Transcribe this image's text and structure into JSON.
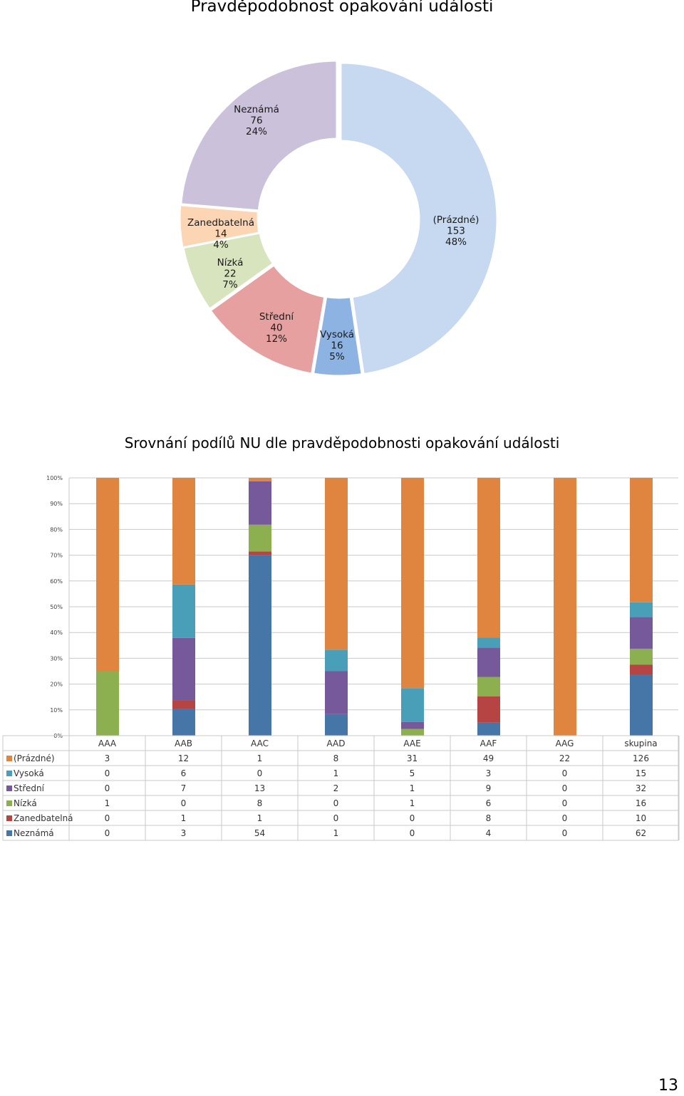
{
  "chart_data": [
    {
      "type": "pie",
      "title": "Pravděpodobnost opakování události",
      "slices": [
        {
          "label": "(Prázdné)",
          "value": 153,
          "pct": "48%",
          "color": "#c6d9f1"
        },
        {
          "label": "Vysoká",
          "value": 16,
          "pct": "5%",
          "color": "#8db3e2"
        },
        {
          "label": "Střední",
          "value": 40,
          "pct": "12%",
          "color": "#e6a0a0"
        },
        {
          "label": "Nízká",
          "value": 22,
          "pct": "7%",
          "color": "#d7e4bd"
        },
        {
          "label": "Zanedbatelná",
          "value": 14,
          "pct": "4%",
          "color": "#fcd5b5"
        },
        {
          "label": "Neznámá",
          "value": 76,
          "pct": "24%",
          "color": "#ccc1da"
        }
      ]
    },
    {
      "type": "bar",
      "stacked": "percent",
      "title": "Srovnání podílů NU dle pravděpodobnosti opakování události",
      "categories": [
        "AAA",
        "AAB",
        "AAC",
        "AAD",
        "AAE",
        "AAF",
        "AAG",
        "skupina"
      ],
      "y_ticks": [
        "0%",
        "10%",
        "20%",
        "30%",
        "40%",
        "50%",
        "60%",
        "70%",
        "80%",
        "90%",
        "100%"
      ],
      "series": [
        {
          "name": "(Prázdné)",
          "color": "#e0853f",
          "values": [
            3,
            12,
            1,
            8,
            31,
            49,
            22,
            126
          ]
        },
        {
          "name": "Vysoká",
          "color": "#4a9fb8",
          "values": [
            0,
            6,
            0,
            1,
            5,
            3,
            0,
            15
          ]
        },
        {
          "name": "Střední",
          "color": "#76599a",
          "values": [
            0,
            7,
            13,
            2,
            1,
            9,
            0,
            32
          ]
        },
        {
          "name": "Nízká",
          "color": "#8caf4f",
          "values": [
            1,
            0,
            8,
            0,
            1,
            6,
            0,
            16
          ]
        },
        {
          "name": "Zanedbatelná",
          "color": "#b54442",
          "values": [
            0,
            1,
            1,
            0,
            0,
            8,
            0,
            10
          ]
        },
        {
          "name": "Neznámá",
          "color": "#4675a8",
          "values": [
            0,
            3,
            54,
            1,
            0,
            4,
            0,
            62
          ]
        }
      ]
    }
  ],
  "page": {
    "number": "13"
  }
}
